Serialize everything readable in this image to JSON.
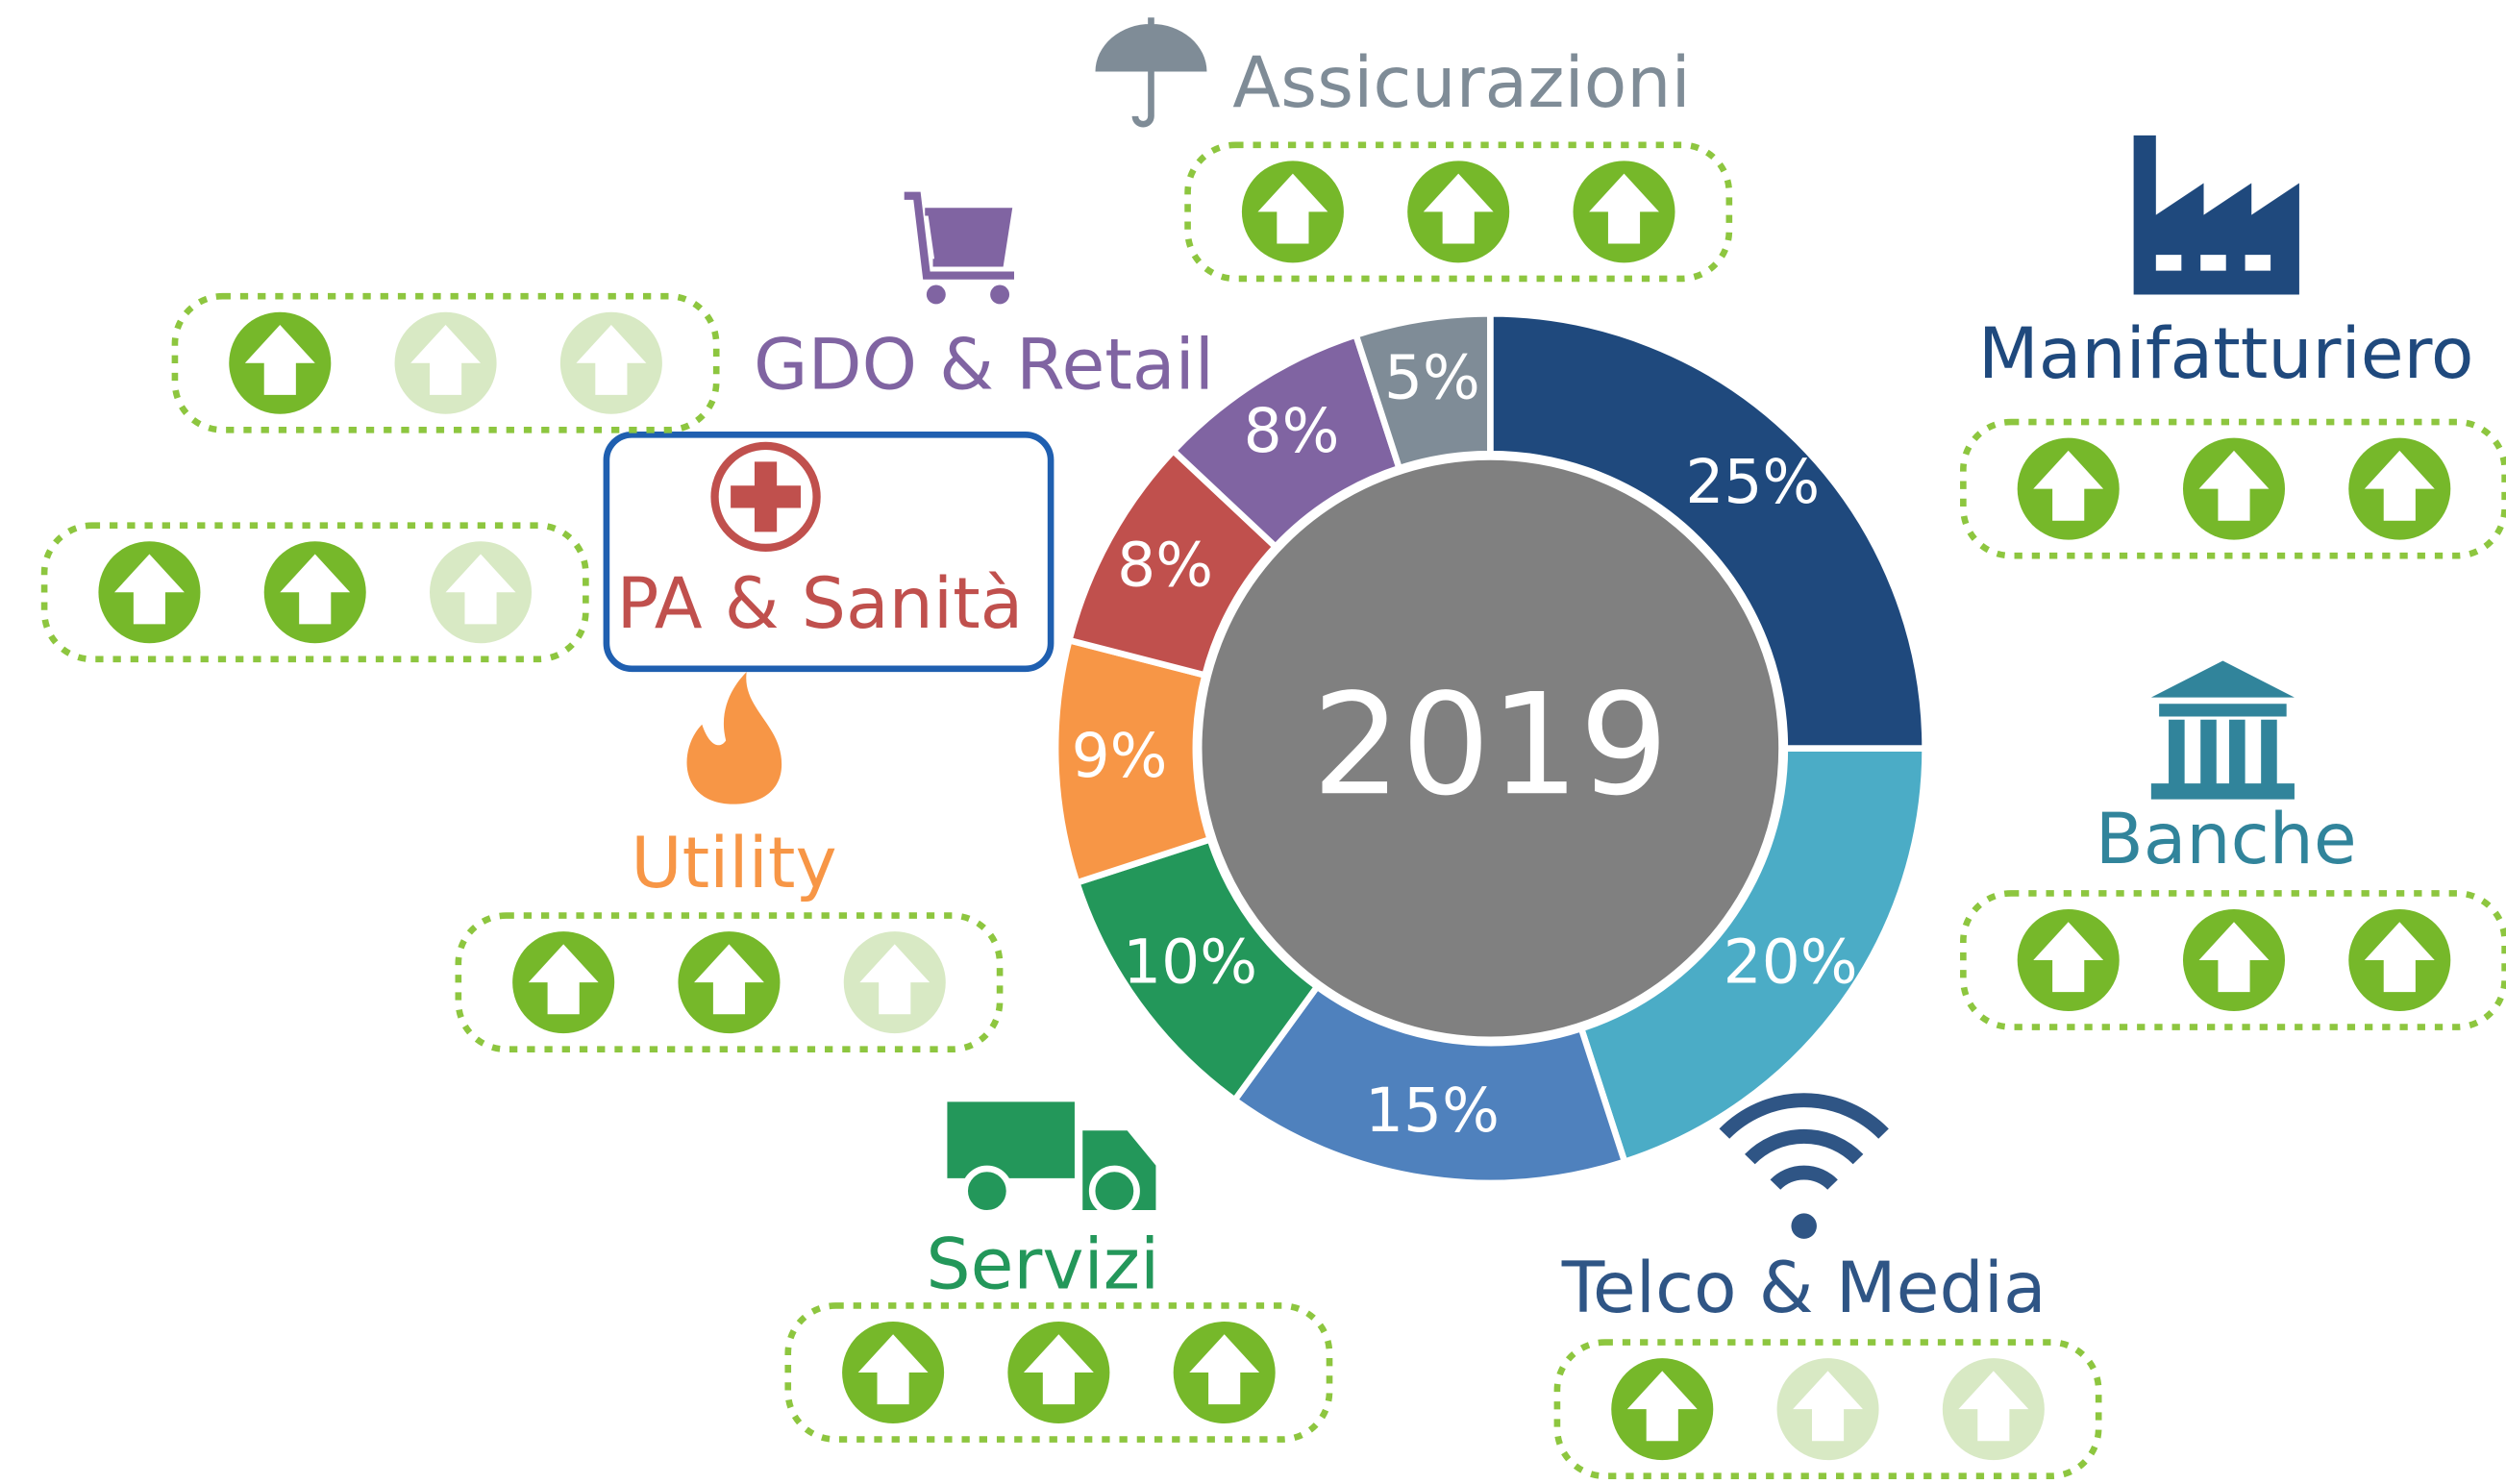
{
  "chart_data": {
    "type": "pie",
    "donut": true,
    "center_label": "2019",
    "categories": [
      "Manifatturiero",
      "Banche",
      "Telco & Media",
      "Servizi",
      "Utility",
      "PA & Sanità",
      "GDO & Retail",
      "Assicurazioni"
    ],
    "values": [
      25,
      20,
      15,
      10,
      9,
      8,
      8,
      5
    ],
    "value_labels": [
      "25%",
      "20%",
      "15%",
      "10%",
      "9%",
      "8%",
      "8%",
      "5%"
    ],
    "colors": [
      "#1f497d",
      "#4bacc6",
      "#4f81bd",
      "#23975a",
      "#f79646",
      "#c0504d",
      "#8064a2",
      "#7f8c97"
    ],
    "ratings": [
      3,
      3,
      1,
      3,
      2,
      2,
      1,
      3
    ],
    "highlight": "PA & Sanità"
  }
}
